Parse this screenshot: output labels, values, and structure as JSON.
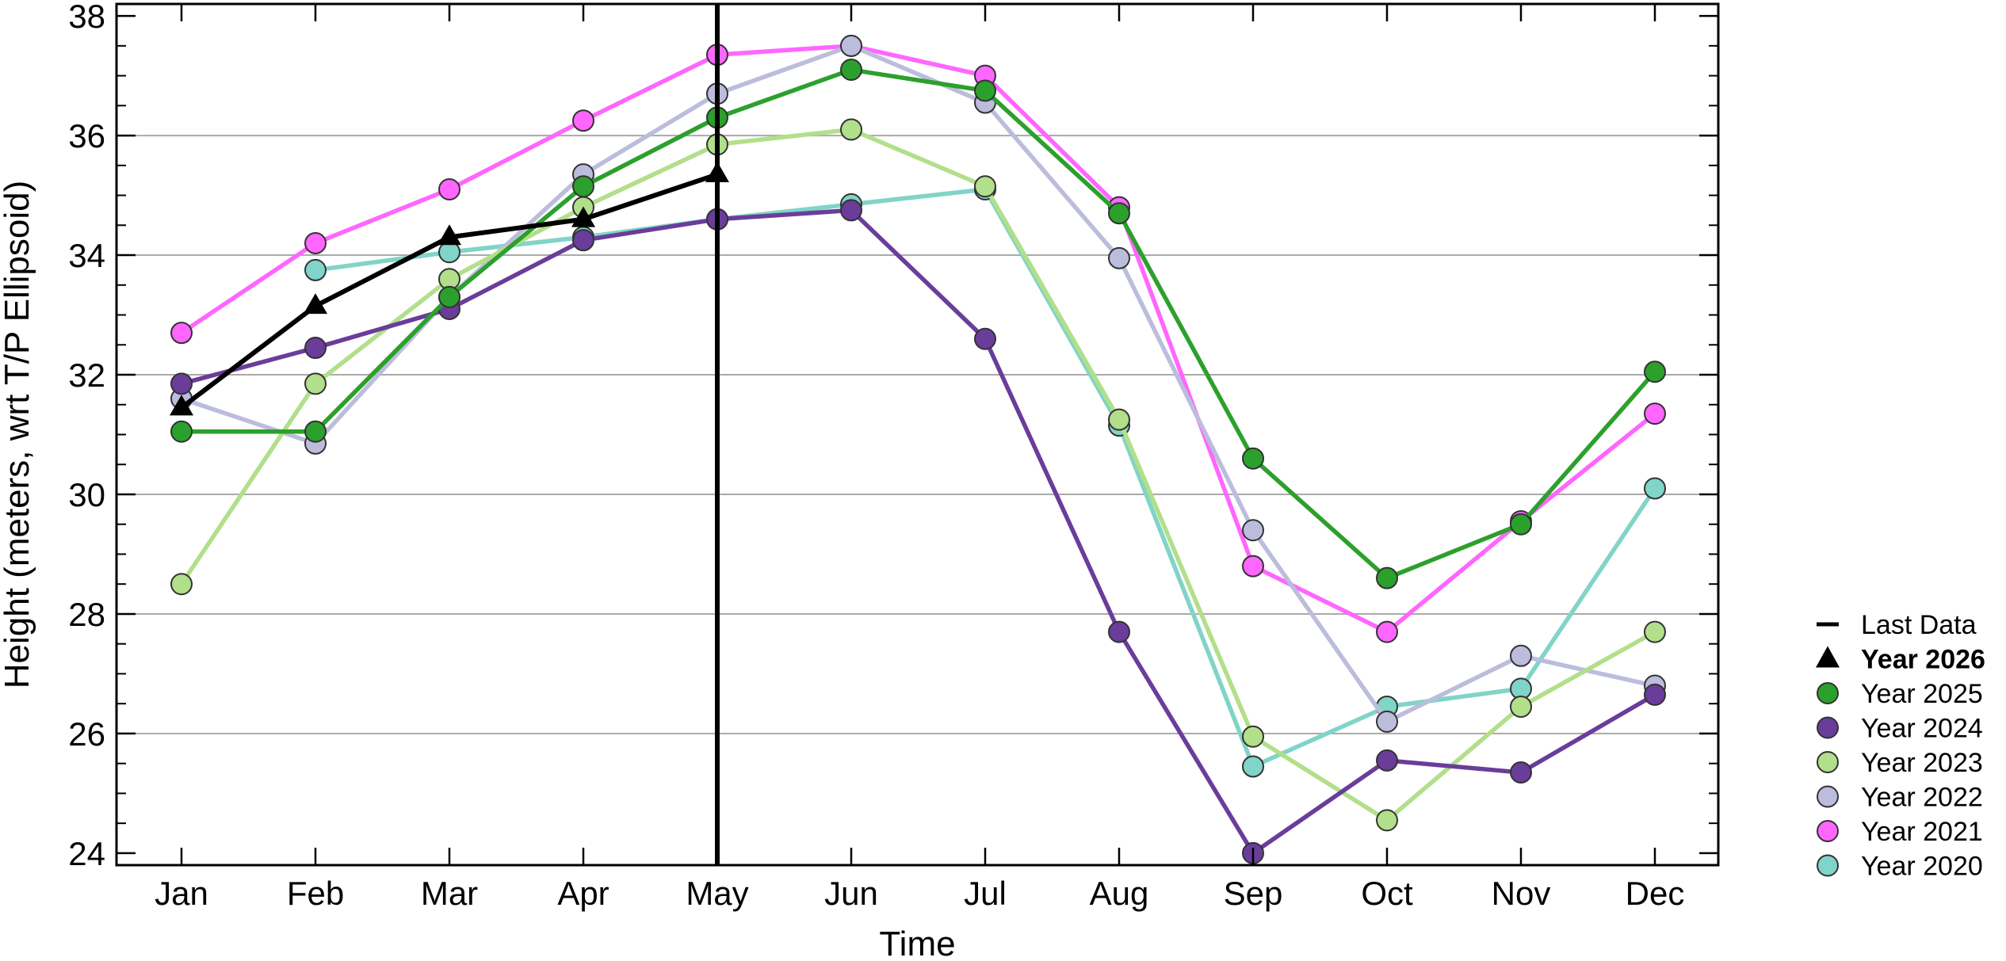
{
  "chart_data": {
    "type": "line",
    "title": "",
    "xlabel": "Time",
    "ylabel": "Height (meters, wrt T/P Ellipsoid)",
    "ylim": [
      23.8,
      38.2
    ],
    "yticks": [
      24,
      26,
      28,
      30,
      32,
      34,
      36,
      38
    ],
    "grid": "horizontal",
    "legend_placement": "right",
    "categories": [
      "Jan",
      "Feb",
      "Mar",
      "Apr",
      "May",
      "Jun",
      "Jul",
      "Aug",
      "Sep",
      "Oct",
      "Nov",
      "Dec"
    ],
    "last_data": {
      "label": "Last Data",
      "category": "May",
      "color": "#000000"
    },
    "series": [
      {
        "name": "Year 2026",
        "color": "#000000",
        "marker": "triangle",
        "bold": true,
        "values": [
          31.45,
          33.15,
          34.3,
          34.6,
          35.35,
          null,
          null,
          null,
          null,
          null,
          null,
          null
        ]
      },
      {
        "name": "Year 2025",
        "color": "#2ca02c",
        "marker": "circle",
        "values": [
          31.05,
          31.05,
          33.3,
          35.15,
          36.3,
          37.1,
          36.75,
          34.7,
          30.6,
          28.6,
          29.5,
          32.05
        ]
      },
      {
        "name": "Year 2024",
        "color": "#6a3d9a",
        "marker": "circle",
        "values": [
          31.85,
          32.45,
          33.1,
          34.25,
          34.6,
          34.75,
          32.6,
          27.7,
          24.0,
          25.55,
          25.35,
          26.65
        ]
      },
      {
        "name": "Year 2023",
        "color": "#b2df8a",
        "marker": "circle",
        "values": [
          28.5,
          31.85,
          33.6,
          34.8,
          35.85,
          36.1,
          35.15,
          31.25,
          25.95,
          24.55,
          26.45,
          27.7
        ]
      },
      {
        "name": "Year 2022",
        "color": "#bcbddc",
        "marker": "circle",
        "values": [
          31.6,
          30.85,
          33.3,
          35.35,
          36.7,
          37.5,
          36.55,
          33.95,
          29.4,
          26.2,
          27.3,
          26.8
        ]
      },
      {
        "name": "Year 2021",
        "color": "#ff66ff",
        "marker": "circle",
        "values": [
          32.7,
          34.2,
          35.1,
          36.25,
          37.35,
          37.5,
          37.0,
          34.8,
          28.8,
          27.7,
          29.55,
          31.35
        ]
      },
      {
        "name": "Year 2020",
        "color": "#80d4c8",
        "marker": "circle",
        "values": [
          null,
          33.75,
          34.05,
          34.3,
          34.6,
          34.85,
          35.1,
          31.15,
          25.45,
          26.45,
          26.75,
          30.1
        ]
      }
    ]
  }
}
